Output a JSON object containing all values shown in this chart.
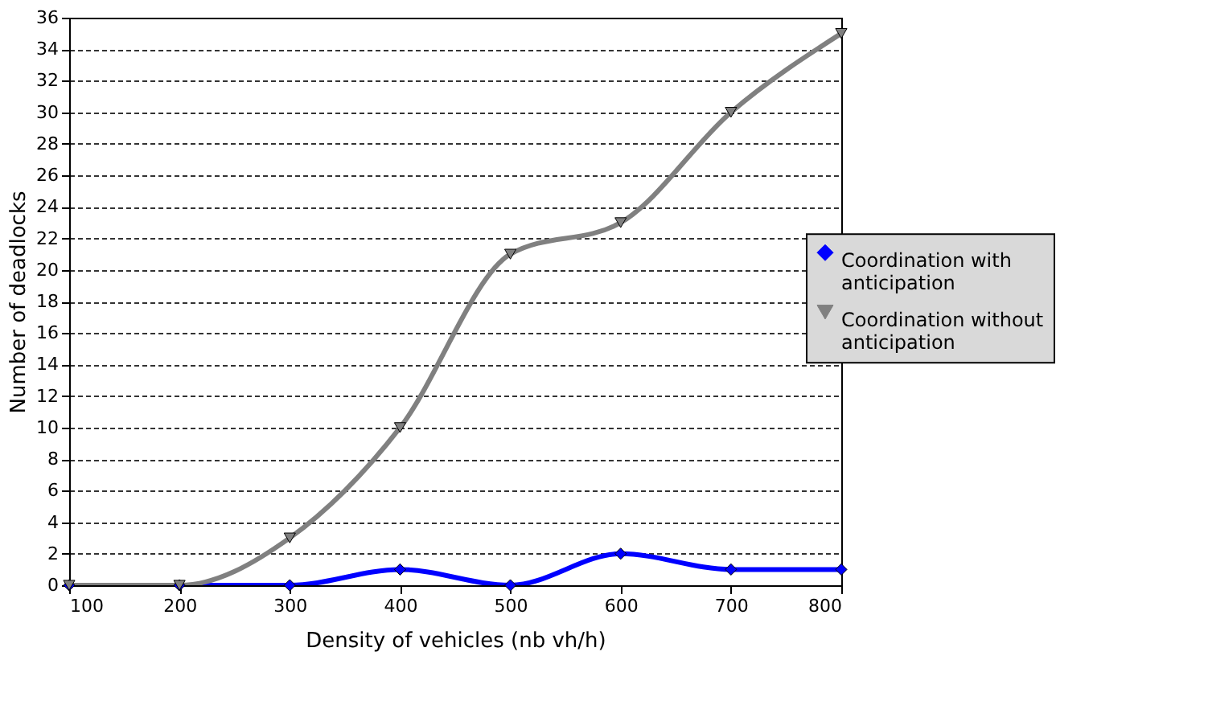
{
  "chart_data": {
    "type": "line",
    "xlabel": "Density of vehicles (nb vh/h)",
    "ylabel": "Number of deadlocks",
    "x": [
      100,
      200,
      300,
      400,
      500,
      600,
      700,
      800
    ],
    "series": [
      {
        "name": "Coordination with anticipation",
        "color": "#0000ff",
        "marker": "diamond",
        "values": [
          0,
          0,
          0,
          1,
          0,
          2,
          1,
          1
        ]
      },
      {
        "name": "Coordination without anticipation",
        "color": "#808080",
        "marker": "triangle",
        "values": [
          0,
          0,
          3,
          10,
          21,
          23,
          30,
          35
        ]
      }
    ],
    "xlim": [
      100,
      800
    ],
    "xticks": [
      100,
      200,
      300,
      400,
      500,
      600,
      700,
      800
    ],
    "ylim": [
      0,
      36
    ],
    "yticks": [
      0,
      2,
      4,
      6,
      8,
      10,
      12,
      14,
      16,
      18,
      20,
      22,
      24,
      26,
      28,
      30,
      32,
      34,
      36
    ],
    "grid": "y",
    "legend": "right"
  }
}
